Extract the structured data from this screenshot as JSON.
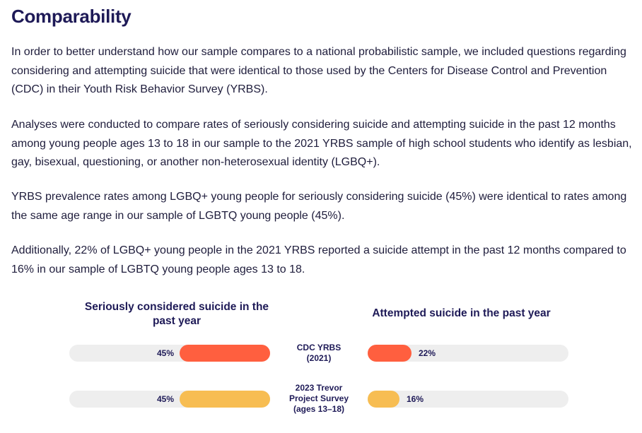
{
  "heading": "Comparability",
  "paragraphs": [
    "In order to better understand how our sample compares to a national probabilistic sample, we included questions regarding considering and attempting suicide that were identical to those used by the Centers for Disease Control and Prevention (CDC) in their Youth Risk Behavior Survey (YRBS).",
    "Analyses were conducted to compare rates of seriously considering suicide and attempting suicide in the past 12 months among young people ages 13 to 18 in our sample to the 2021 YRBS sample of high school students who identify as lesbian, gay, bisexual, questioning, or another non-heterosexual identity (LGBQ+).",
    "YRBS prevalence rates among LGBQ+ young people for seriously considering suicide (45%) were identical to rates among the same age range in our sample of LGBTQ young people (45%).",
    "Additionally, 22% of LGBQ+ young people in the 2021 YRBS reported a suicide attempt in the past 12 months compared to 16% in our sample of LGBTQ young people ages 13 to 18."
  ],
  "chart_data": {
    "type": "bar",
    "orientation": "horizontal-butterfly",
    "categories": [
      "CDC YRBS (2021)",
      "2023 Trevor Project Survey (ages 13–18)"
    ],
    "category_lines": [
      [
        "CDC YRBS",
        "(2021)"
      ],
      [
        "2023 Trevor",
        "Project Survey",
        "(ages 13–18)"
      ]
    ],
    "series": [
      {
        "name": "Seriously considered suicide in the past year",
        "title_lines": [
          "Seriously considered suicide in the",
          "past year"
        ],
        "values": [
          45,
          45
        ],
        "labels": [
          "45%",
          "45%"
        ],
        "direction": "left"
      },
      {
        "name": "Attempted suicide in the past year",
        "title_lines": [
          "Attempted suicide in the past year"
        ],
        "values": [
          22,
          16
        ],
        "labels": [
          "22%",
          "16%"
        ],
        "direction": "right"
      }
    ],
    "colors": [
      "#ff5f3f",
      "#f7bd52"
    ],
    "track_color": "#eeeeee",
    "xlim": [
      0,
      100
    ]
  }
}
